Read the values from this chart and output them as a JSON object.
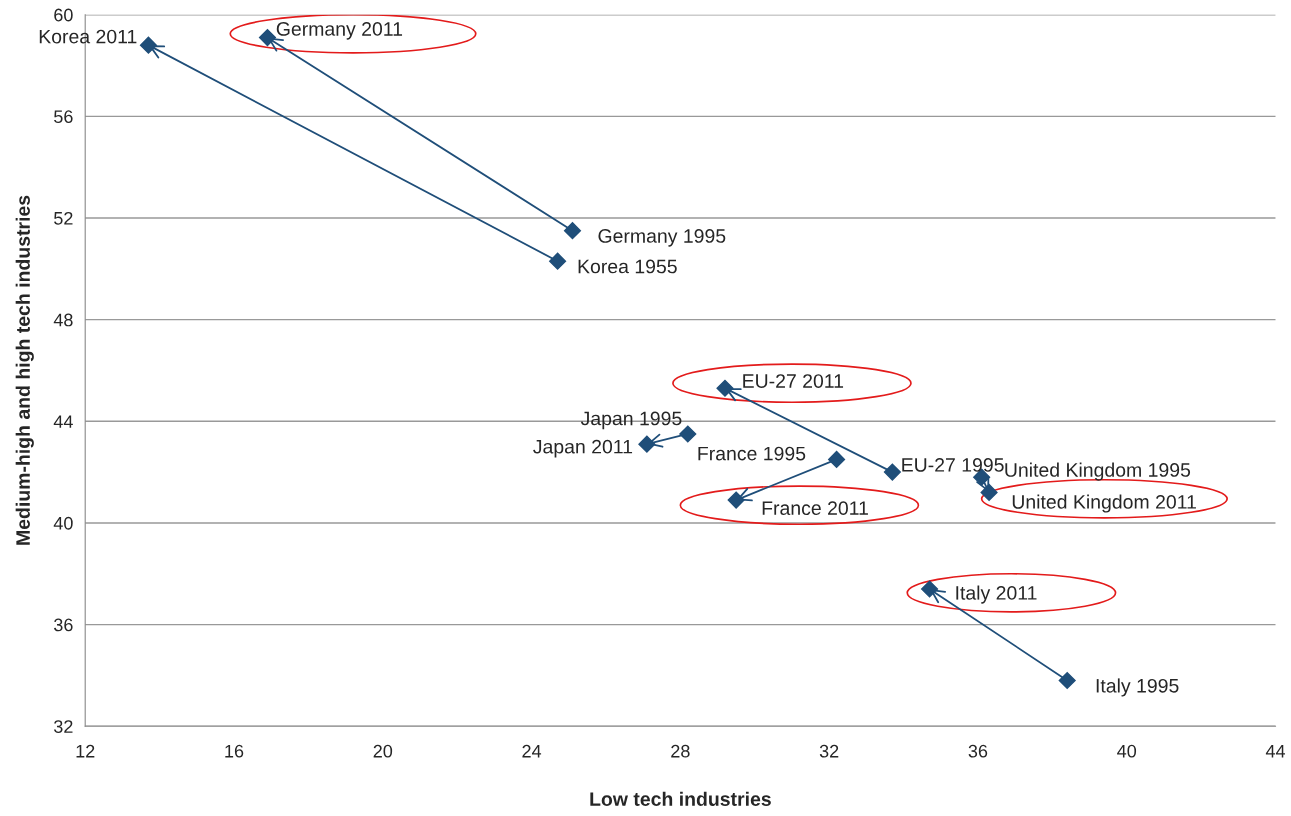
{
  "chart_data": {
    "type": "line",
    "xlabel": "Low tech industries",
    "ylabel": "Medium-high and high tech industries",
    "xlim": [
      12,
      44
    ],
    "xticks": [
      12,
      16,
      20,
      24,
      28,
      32,
      36,
      40,
      44
    ],
    "ylim": [
      32,
      60
    ],
    "yticks": [
      32,
      36,
      40,
      44,
      48,
      52,
      56,
      60
    ],
    "grid": "y",
    "marker": "diamond",
    "legend": false,
    "series": [
      {
        "color": "#1f4e79",
        "x": [
          24.7,
          13.7
        ],
        "values": [
          50.3,
          58.8
        ]
      },
      {
        "color": "#1f4e79",
        "x": [
          25.1,
          16.9
        ],
        "values": [
          51.5,
          59.1
        ]
      },
      {
        "color": "#1f4e79",
        "x": [
          33.7,
          29.2
        ],
        "values": [
          42.0,
          45.3
        ]
      },
      {
        "color": "#1f4e79",
        "x": [
          28.2,
          27.1
        ],
        "values": [
          43.5,
          43.1
        ]
      },
      {
        "color": "#1f4e79",
        "x": [
          32.2,
          29.5
        ],
        "values": [
          42.5,
          40.9
        ]
      },
      {
        "color": "#1f4e79",
        "x": [
          36.1,
          36.3
        ],
        "values": [
          41.8,
          41.2
        ]
      },
      {
        "color": "#1f4e79",
        "x": [
          38.4,
          34.7
        ],
        "values": [
          33.8,
          37.4
        ]
      }
    ],
    "annotations": [
      {
        "text": "Korea 1955",
        "x": 24.7,
        "y": 50.3
      },
      {
        "text": "Korea 2011",
        "x": 13.7,
        "y": 58.8
      },
      {
        "text": "Germany 1995",
        "x": 25.1,
        "y": 51.5
      },
      {
        "text": "Germany 2011",
        "x": 16.9,
        "y": 59.1
      },
      {
        "text": "EU-27 1995",
        "x": 33.7,
        "y": 42.0
      },
      {
        "text": "EU-27 2011",
        "x": 29.2,
        "y": 45.3
      },
      {
        "text": "Japan 1995",
        "x": 28.2,
        "y": 43.5
      },
      {
        "text": "Japan 2011",
        "x": 27.1,
        "y": 43.1
      },
      {
        "text": "France 1995",
        "x": 32.2,
        "y": 42.5
      },
      {
        "text": "France 2011",
        "x": 29.5,
        "y": 40.9
      },
      {
        "text": "United Kingdom 1995",
        "x": 36.1,
        "y": 41.8
      },
      {
        "text": "United Kingdom 2011",
        "x": 36.3,
        "y": 41.2
      },
      {
        "text": "Italy 1995",
        "x": 38.4,
        "y": 33.8
      },
      {
        "text": "Italy 2011",
        "x": 34.7,
        "y": 37.4
      }
    ]
  }
}
